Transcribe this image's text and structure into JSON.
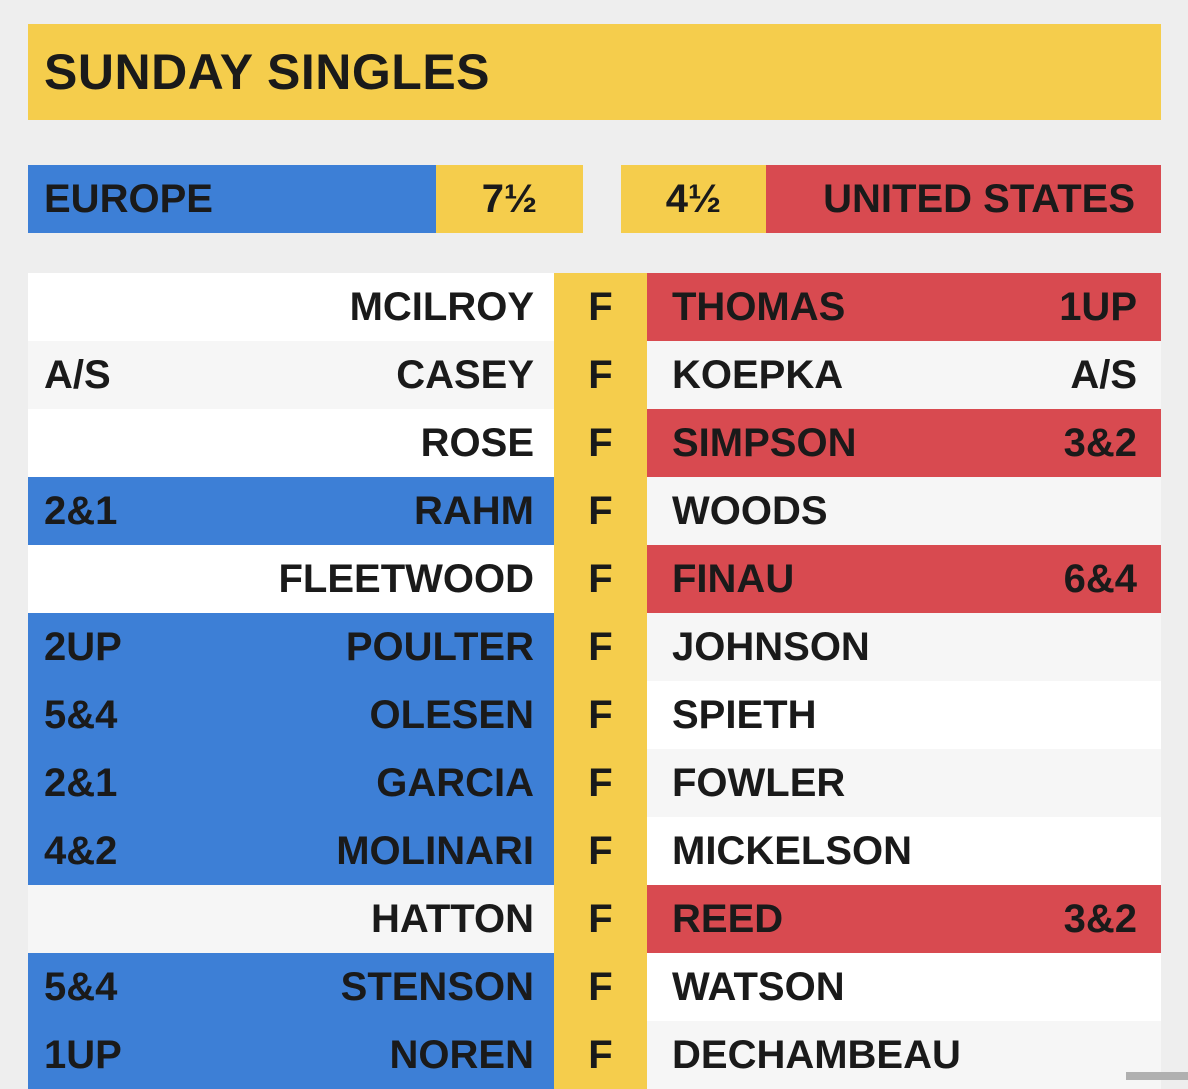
{
  "title": "SUNDAY SINGLES",
  "teams": {
    "europe": {
      "name": "EUROPE",
      "score": "7½",
      "color": "#3d7fd6"
    },
    "usa": {
      "name": "UNITED STATES",
      "score": "4½",
      "color": "#d84a50"
    }
  },
  "accent_color": "#f5cd4c",
  "matches": [
    {
      "eu_player": "MCILROY",
      "eu_result": "",
      "status": "F",
      "us_player": "THOMAS",
      "us_result": "1UP",
      "winner": "us"
    },
    {
      "eu_player": "CASEY",
      "eu_result": "A/S",
      "status": "F",
      "us_player": "KOEPKA",
      "us_result": "A/S",
      "winner": "halved"
    },
    {
      "eu_player": "ROSE",
      "eu_result": "",
      "status": "F",
      "us_player": "SIMPSON",
      "us_result": "3&2",
      "winner": "us"
    },
    {
      "eu_player": "RAHM",
      "eu_result": "2&1",
      "status": "F",
      "us_player": "WOODS",
      "us_result": "",
      "winner": "eu"
    },
    {
      "eu_player": "FLEETWOOD",
      "eu_result": "",
      "status": "F",
      "us_player": "FINAU",
      "us_result": "6&4",
      "winner": "us"
    },
    {
      "eu_player": "POULTER",
      "eu_result": "2UP",
      "status": "F",
      "us_player": "JOHNSON",
      "us_result": "",
      "winner": "eu"
    },
    {
      "eu_player": "OLESEN",
      "eu_result": "5&4",
      "status": "F",
      "us_player": "SPIETH",
      "us_result": "",
      "winner": "eu"
    },
    {
      "eu_player": "GARCIA",
      "eu_result": "2&1",
      "status": "F",
      "us_player": "FOWLER",
      "us_result": "",
      "winner": "eu"
    },
    {
      "eu_player": "MOLINARI",
      "eu_result": "4&2",
      "status": "F",
      "us_player": "MICKELSON",
      "us_result": "",
      "winner": "eu"
    },
    {
      "eu_player": "HATTON",
      "eu_result": "",
      "status": "F",
      "us_player": "REED",
      "us_result": "3&2",
      "winner": "us"
    },
    {
      "eu_player": "STENSON",
      "eu_result": "5&4",
      "status": "F",
      "us_player": "WATSON",
      "us_result": "",
      "winner": "eu"
    },
    {
      "eu_player": "NOREN",
      "eu_result": "1UP",
      "status": "F",
      "us_player": "DECHAMBEAU",
      "us_result": "",
      "winner": "eu"
    }
  ]
}
